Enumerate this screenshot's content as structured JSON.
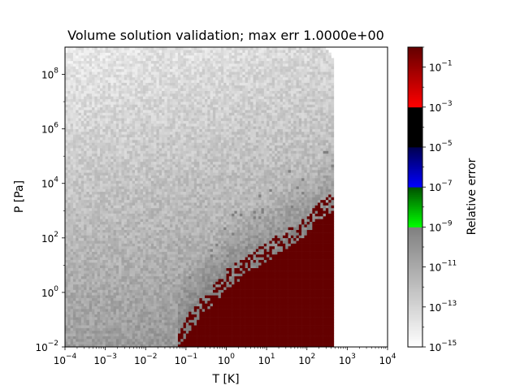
{
  "chart_data": {
    "type": "heatmap",
    "title": "Volume solution validation; max err 1.0000e+00",
    "xlabel": "T [K]",
    "ylabel": "P [Pa]",
    "xscale": "log",
    "yscale": "log",
    "xlim": [
      0.0001,
      10000
    ],
    "ylim": [
      0.01,
      1000000000
    ],
    "x_ticks": [
      {
        "base": "10",
        "exp": "−4"
      },
      {
        "base": "10",
        "exp": "−3"
      },
      {
        "base": "10",
        "exp": "−2"
      },
      {
        "base": "10",
        "exp": "−1"
      },
      {
        "base": "10",
        "exp": "0"
      },
      {
        "base": "10",
        "exp": "1"
      },
      {
        "base": "10",
        "exp": "2"
      },
      {
        "base": "10",
        "exp": "3"
      },
      {
        "base": "10",
        "exp": "4"
      }
    ],
    "y_ticks": [
      {
        "base": "10",
        "exp": "−2"
      },
      {
        "base": "10",
        "exp": "0"
      },
      {
        "base": "10",
        "exp": "2"
      },
      {
        "base": "10",
        "exp": "4"
      },
      {
        "base": "10",
        "exp": "6"
      },
      {
        "base": "10",
        "exp": "8"
      }
    ],
    "colorbar": {
      "label": "Relative error",
      "scale": "log",
      "range": [
        1e-15,
        1
      ],
      "ticks": [
        {
          "base": "10",
          "exp": "−1"
        },
        {
          "base": "10",
          "exp": "−3"
        },
        {
          "base": "10",
          "exp": "−5"
        },
        {
          "base": "10",
          "exp": "−7"
        },
        {
          "base": "10",
          "exp": "−9"
        },
        {
          "base": "10",
          "exp": "−11"
        },
        {
          "base": "10",
          "exp": "−13"
        },
        {
          "base": "10",
          "exp": "−15"
        }
      ],
      "bands": [
        {
          "from_exp": -15,
          "to_exp": -9,
          "colors": [
            "#ffffff",
            "#808080"
          ]
        },
        {
          "from_exp": -9,
          "to_exp": -7,
          "colors": [
            "#00ff00",
            "#005000"
          ]
        },
        {
          "from_exp": -7,
          "to_exp": -5,
          "colors": [
            "#0000ff",
            "#000050"
          ]
        },
        {
          "from_exp": -5,
          "to_exp": -3,
          "colors": [
            "#000000",
            "#000000"
          ]
        },
        {
          "from_exp": -3,
          "to_exp": 0,
          "colors": [
            "#ff0000",
            "#640000"
          ]
        }
      ]
    },
    "regions": {
      "valid_T_max": 500,
      "valid_P_max": 1000000000,
      "high_error_boundary": [
        [
          0.06,
          0.01
        ],
        [
          0.1,
          0.06
        ],
        [
          1,
          3
        ],
        [
          10,
          30
        ],
        [
          100,
          300
        ],
        [
          500,
          3000
        ]
      ],
      "high_error_value": 1,
      "background_error_range_exp": [
        -14,
        -10
      ]
    }
  }
}
